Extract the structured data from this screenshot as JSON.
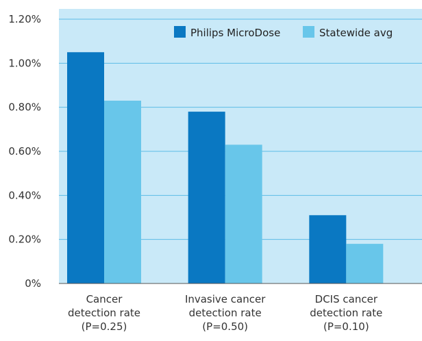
{
  "chart_data": {
    "type": "bar",
    "categories": [
      [
        "Cancer",
        "detection rate",
        "(P=0.25)"
      ],
      [
        "Invasive cancer",
        "detection rate",
        "(P=0.50)"
      ],
      [
        "DCIS cancer",
        "detection rate",
        "(P=0.10)"
      ]
    ],
    "series": [
      {
        "name": "Philips MicroDose",
        "values": [
          1.05,
          0.78,
          0.31
        ],
        "color": "#0a78c2"
      },
      {
        "name": "Statewide avg",
        "values": [
          0.83,
          0.63,
          0.18
        ],
        "color": "#68c6ea"
      }
    ],
    "yticks": [
      "0%",
      "0.20%",
      "0.40%",
      "0.60%",
      "0.80%",
      "1.00%",
      "1.20%"
    ],
    "ylim": [
      0,
      1.2
    ],
    "grid": true,
    "legend": "top-right",
    "plot_background": "#c9e9f8",
    "gridline_color": "#5bbbe6"
  }
}
